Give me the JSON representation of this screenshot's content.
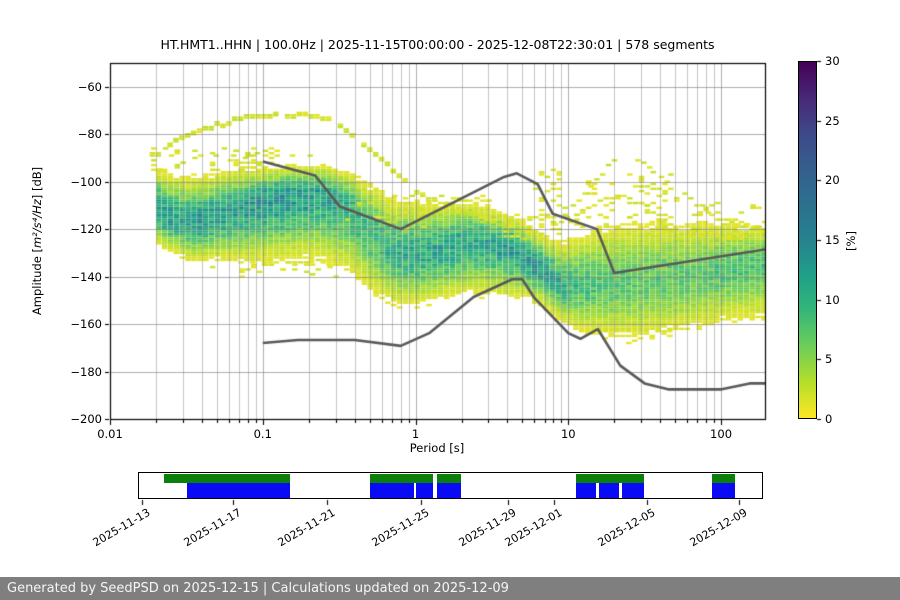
{
  "header": {
    "title": "HT.HMT1..HHN | 100.0Hz | 2025-11-15T00:00:00 - 2025-12-08T22:30:01 | 578 segments"
  },
  "main_plot": {
    "xlabel": "Period [s]",
    "ylabel_prefix": "Amplitude [",
    "ylabel_math": "m²/s⁴/Hz",
    "ylabel_suffix": "] [dB]",
    "x_tick_labels": [
      "0.01",
      "0.1",
      "1",
      "10",
      "100"
    ],
    "x_tick_values": [
      0.01,
      0.1,
      1,
      10,
      100
    ],
    "y_tick_labels": [
      "−60",
      "−80",
      "−100",
      "−120",
      "−140",
      "−160",
      "−180",
      "−200"
    ],
    "y_tick_values": [
      -60,
      -80,
      -100,
      -120,
      -140,
      -160,
      -180,
      -200
    ],
    "grid_color_major": "rgba(130,130,130,0.65)",
    "grid_color_minor": "rgba(150,150,150,0.55)"
  },
  "colorbar": {
    "label": "[%]",
    "tick_labels": [
      "0",
      "5",
      "10",
      "15",
      "20",
      "25",
      "30"
    ],
    "tick_values": [
      0,
      5,
      10,
      15,
      20,
      25,
      30
    ],
    "vmin": 0,
    "vmax": 30,
    "colormap": "viridis_r",
    "stops": [
      [
        0.0,
        "#440154"
      ],
      [
        0.1,
        "#482878"
      ],
      [
        0.2,
        "#3e4989"
      ],
      [
        0.3,
        "#355f8d"
      ],
      [
        0.4,
        "#2d708e"
      ],
      [
        0.5,
        "#26828e"
      ],
      [
        0.6,
        "#1fa088"
      ],
      [
        0.7,
        "#35b779"
      ],
      [
        0.8,
        "#6ece58"
      ],
      [
        0.9,
        "#b5de2b"
      ],
      [
        1.0,
        "#fde725"
      ]
    ]
  },
  "chart_data": {
    "type": "heatmap",
    "subtype": "PPSD probabilistic power spectral density",
    "title": "HT.HMT1..HHN | 100.0Hz | 2025-11-15T00:00:00 - 2025-12-08T22:30:01 | 578 segments",
    "xlabel": "Period [s]",
    "ylabel": "Amplitude [m²/s⁴/Hz] [dB]",
    "x_scale": "log",
    "xlim": [
      0.01,
      194
    ],
    "ylim": [
      -200,
      -50
    ],
    "clim_percent": [
      0,
      30
    ],
    "colormap": "viridis_r",
    "grid": "both",
    "period_bins_per_decade": 26,
    "db_bin": 1,
    "psd_band": {
      "comment": "columns: log10(period s), mode dB, sigma up dB, sigma down dB, peak probability %",
      "keypoints": [
        [
          -1.7,
          -112,
          8,
          7,
          13
        ],
        [
          -1.6,
          -116,
          9,
          7,
          12
        ],
        [
          -1.48,
          -117,
          9,
          8,
          12
        ],
        [
          -1.28,
          -114,
          9,
          9,
          12
        ],
        [
          -1.09,
          -109,
          7,
          12,
          13
        ],
        [
          -0.87,
          -106,
          6,
          13,
          13
        ],
        [
          -0.63,
          -105.5,
          6,
          13,
          12
        ],
        [
          -0.45,
          -110,
          7,
          14,
          10
        ],
        [
          -0.3,
          -121,
          10,
          13,
          9
        ],
        [
          -0.15,
          -130,
          11,
          11,
          10
        ],
        [
          0.0,
          -131,
          11,
          10,
          11
        ],
        [
          0.35,
          -125,
          8,
          11,
          11
        ],
        [
          0.6,
          -128,
          7,
          10,
          12
        ],
        [
          0.7,
          -132,
          7,
          8,
          13
        ],
        [
          0.8,
          -137,
          7,
          7,
          13
        ],
        [
          0.95,
          -144,
          9,
          8,
          10
        ],
        [
          1.15,
          -143,
          12,
          11,
          8
        ],
        [
          1.45,
          -142,
          13,
          13,
          7
        ],
        [
          1.75,
          -140,
          12,
          12,
          7
        ],
        [
          2.0,
          -138,
          11,
          11,
          7.5
        ],
        [
          2.29,
          -134,
          8,
          12,
          8
        ]
      ]
    },
    "outlier_arcs": [
      {
        "name": "high-noise arc short periods",
        "presence": 0.93,
        "rows": 2,
        "points": [
          [
            -1.74,
            -88
          ],
          [
            -1.55,
            -81
          ],
          [
            -1.35,
            -76
          ],
          [
            -1.15,
            -72.5
          ],
          [
            -0.95,
            -71.8
          ],
          [
            -0.72,
            -71.3
          ],
          [
            -0.55,
            -74
          ],
          [
            -0.43,
            -80
          ],
          [
            -0.3,
            -86.5
          ],
          [
            -0.17,
            -95
          ],
          [
            0.0,
            -104
          ],
          [
            0.2,
            -109
          ],
          [
            0.35,
            -113
          ],
          [
            0.5,
            -116.5
          ],
          [
            0.62,
            -118.5
          ]
        ]
      },
      {
        "name": "long-period arc 1",
        "presence": 0.8,
        "rows": 1,
        "points": [
          [
            0.9,
            -118
          ],
          [
            1.02,
            -111
          ],
          [
            1.12,
            -103
          ],
          [
            1.22,
            -95
          ],
          [
            1.31,
            -89.5
          ],
          [
            1.42,
            -90.5
          ],
          [
            1.52,
            -94
          ],
          [
            1.63,
            -100
          ],
          [
            1.8,
            -108
          ],
          [
            2.0,
            -115.5
          ],
          [
            2.15,
            -119.5
          ],
          [
            2.29,
            -121.5
          ]
        ]
      },
      {
        "name": "long-period arc 2",
        "presence": 0.65,
        "rows": 1,
        "points": [
          [
            1.0,
            -118
          ],
          [
            1.12,
            -111
          ],
          [
            1.25,
            -106
          ],
          [
            1.4,
            -108
          ],
          [
            1.55,
            -113.5
          ],
          [
            1.7,
            -118
          ],
          [
            1.9,
            -122
          ],
          [
            2.1,
            -124.5
          ]
        ]
      },
      {
        "name": "flat outlier trace",
        "presence": 0.4,
        "rows": 1,
        "points": [
          [
            -1.4,
            -89
          ],
          [
            -0.6,
            -89
          ]
        ]
      }
    ],
    "speckle_regions": [
      [
        -1.72,
        -0.9,
        -95,
        -86,
        55
      ],
      [
        -0.5,
        0.55,
        -120,
        -106,
        40
      ],
      [
        0.8,
        1.7,
        -119,
        -95,
        90
      ],
      [
        1.5,
        2.29,
        -124,
        -109,
        55
      ],
      [
        0.55,
        0.95,
        -125,
        -114,
        25
      ],
      [
        -1.35,
        -0.5,
        -140,
        -133,
        30
      ]
    ],
    "noise_models": {
      "color": "#595959",
      "nhnm": [
        [
          0.1,
          -91.5
        ],
        [
          0.22,
          -97.4
        ],
        [
          0.32,
          -110.5
        ],
        [
          0.8,
          -120.0
        ],
        [
          3.8,
          -98.0
        ],
        [
          4.6,
          -96.5
        ],
        [
          6.3,
          -101.0
        ],
        [
          7.9,
          -113.5
        ],
        [
          15.4,
          -120.0
        ],
        [
          20.0,
          -138.5
        ],
        [
          194.0,
          -128.6
        ]
      ],
      "nlnm": [
        [
          0.1,
          -168.0
        ],
        [
          0.17,
          -166.7
        ],
        [
          0.4,
          -166.7
        ],
        [
          0.8,
          -169.2
        ],
        [
          1.24,
          -163.7
        ],
        [
          2.4,
          -148.6
        ],
        [
          4.3,
          -141.1
        ],
        [
          5.0,
          -141.1
        ],
        [
          6.0,
          -149.0
        ],
        [
          10.0,
          -163.8
        ],
        [
          12.0,
          -166.2
        ],
        [
          15.6,
          -162.1
        ],
        [
          21.9,
          -177.5
        ],
        [
          31.6,
          -185.0
        ],
        [
          45.0,
          -187.5
        ],
        [
          101.0,
          -187.5
        ],
        [
          154.0,
          -185.0
        ],
        [
          194.0,
          -185.0
        ]
      ]
    },
    "data_start_period_s": 0.02
  },
  "availability": {
    "green_color": "#0a800a",
    "blue_color": "#0a0af5",
    "green_segments_pct": [
      [
        4.0,
        24.3
      ],
      [
        37.1,
        47.2
      ],
      [
        47.8,
        51.7
      ],
      [
        70.1,
        81.0
      ],
      [
        92.0,
        95.7
      ]
    ],
    "blue_segments_pct": [
      [
        7.7,
        24.2
      ],
      [
        37.1,
        44.2
      ],
      [
        44.5,
        47.2
      ],
      [
        47.8,
        51.7
      ],
      [
        70.1,
        73.4
      ],
      [
        73.9,
        77.1
      ],
      [
        77.6,
        81.0
      ],
      [
        92.0,
        95.7
      ]
    ],
    "date_ticks": [
      {
        "label": "2025-11-13",
        "pct": 0.6
      },
      {
        "label": "2025-11-17",
        "pct": 15.2
      },
      {
        "label": "2025-11-21",
        "pct": 30.2
      },
      {
        "label": "2025-11-25",
        "pct": 45.3
      },
      {
        "label": "2025-11-29",
        "pct": 59.2
      },
      {
        "label": "2025-12-01",
        "pct": 66.6
      },
      {
        "label": "2025-12-05",
        "pct": 81.4
      },
      {
        "label": "2025-12-09",
        "pct": 96.2
      }
    ]
  },
  "footer": {
    "text": "Generated by SeedPSD on 2025-12-15 | Calculations updated on 2025-12-09"
  }
}
